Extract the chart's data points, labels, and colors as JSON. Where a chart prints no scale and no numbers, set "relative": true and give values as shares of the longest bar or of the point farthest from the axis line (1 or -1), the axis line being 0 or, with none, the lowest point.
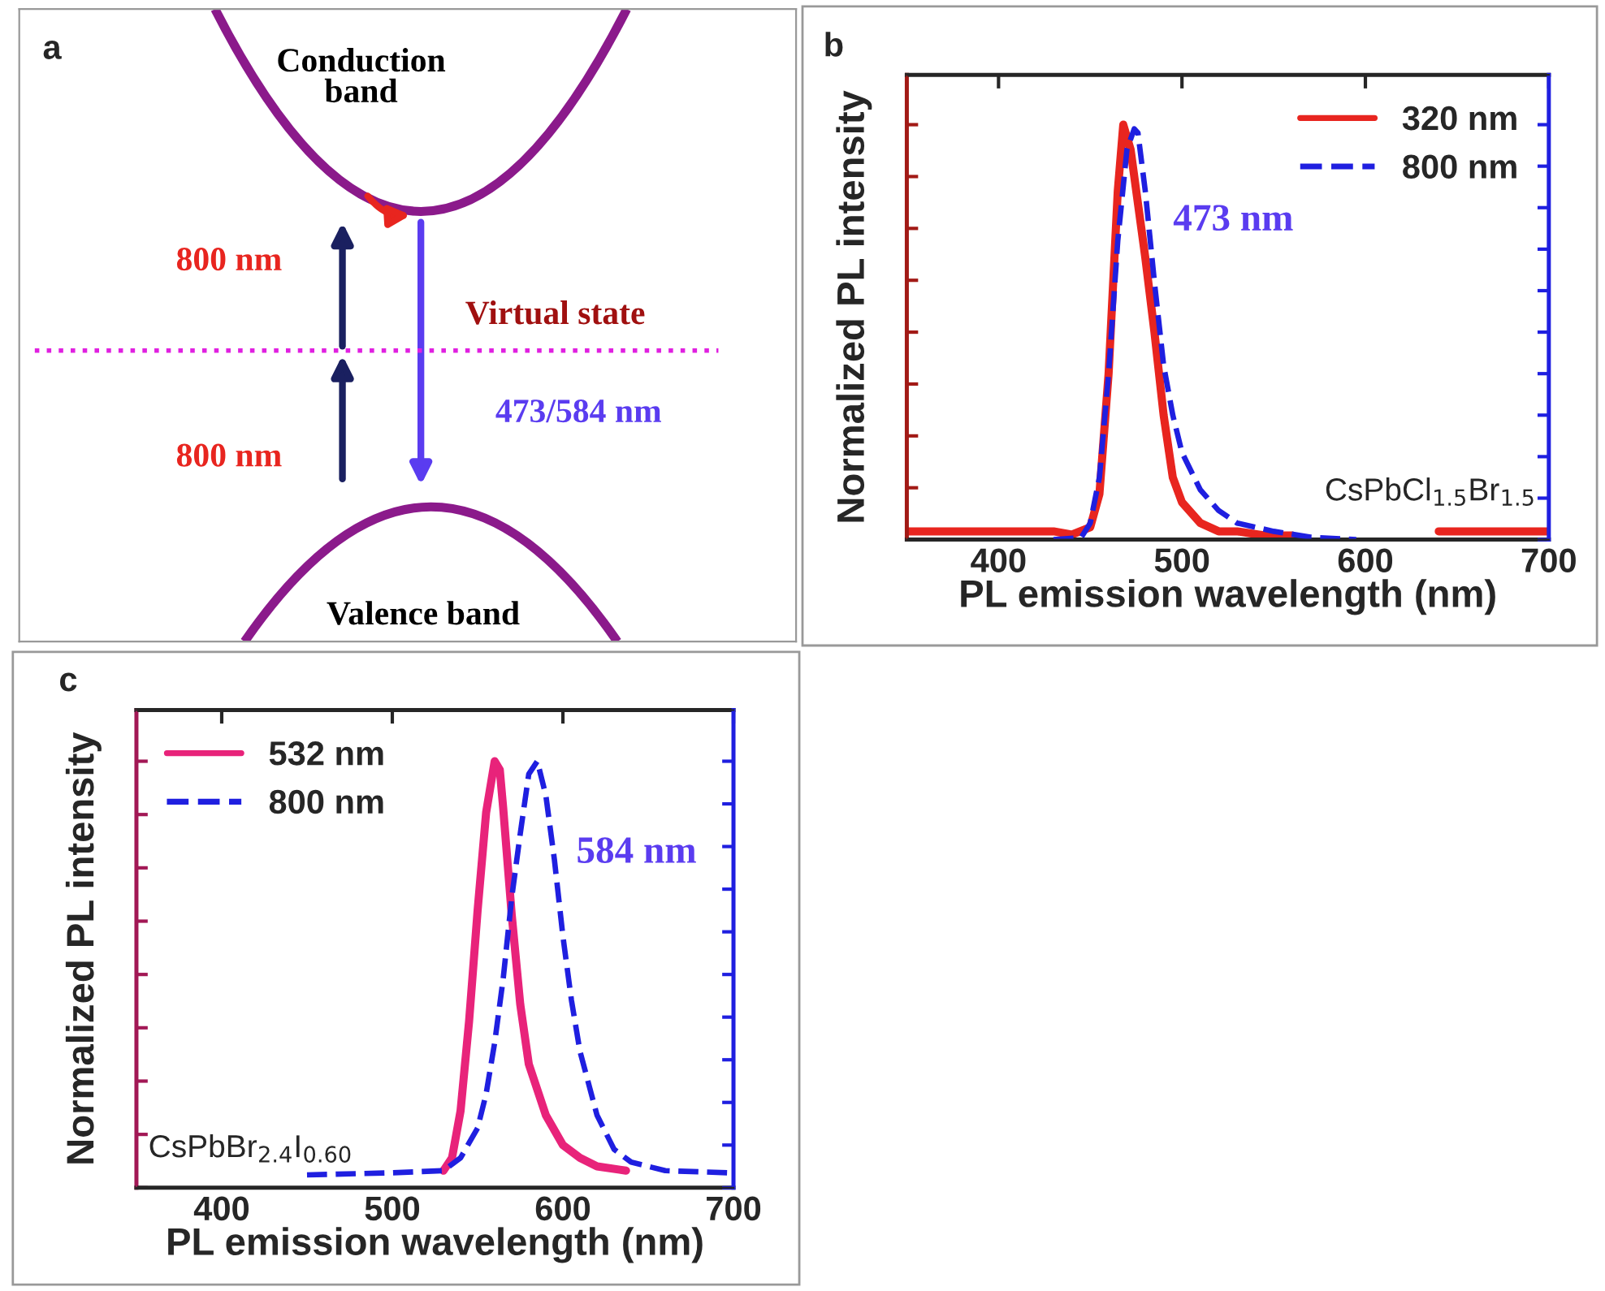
{
  "chart_data": [
    {
      "type": "other",
      "title": "a",
      "annotations": [
        "Conduction\nband",
        "Valence band",
        "800 nm",
        "800 nm",
        "Virtual state",
        "473/584 nm"
      ]
    },
    {
      "type": "line",
      "title": "b",
      "xlabel": "PL emission wavelength (nm)",
      "ylabel": "Normalized PL intensity",
      "relative": true,
      "xlim": [
        350,
        700
      ],
      "xticks": [
        400,
        500,
        600,
        700
      ],
      "tick_labels": "x",
      "legend": "top right",
      "grid": false,
      "series": [
        {
          "name": "320 nm",
          "color": "#e8251f",
          "line_style": "solid",
          "x": [
            350,
            380,
            410,
            430,
            440,
            450,
            455,
            460,
            465,
            468,
            472,
            480,
            485,
            490,
            495,
            500,
            510,
            520,
            530,
            545,
            560,
            575,
            640,
            660,
            680,
            700
          ],
          "values": [
            0.02,
            0.02,
            0.02,
            0.02,
            0.012,
            0.03,
            0.11,
            0.4,
            0.84,
            1.0,
            0.94,
            0.68,
            0.5,
            0.3,
            0.15,
            0.09,
            0.04,
            0.02,
            0.02,
            0.01,
            0.01,
            null,
            0.02,
            0.02,
            0.02,
            0.02
          ]
        },
        {
          "name": "800 nm",
          "color": "#1f1fe0",
          "line_style": "dashed",
          "axis": "y2",
          "x": [
            430,
            445,
            450,
            455,
            460,
            465,
            470,
            474,
            476,
            480,
            485,
            490,
            495,
            500,
            510,
            520,
            530,
            550,
            570,
            595
          ],
          "values": [
            0,
            0.005,
            0.04,
            0.15,
            0.4,
            0.72,
            0.94,
            0.99,
            0.98,
            0.84,
            0.62,
            0.42,
            0.3,
            0.21,
            0.12,
            0.07,
            0.04,
            0.02,
            0.006,
            0
          ]
        }
      ],
      "annotations": [
        {
          "text": "473 nm",
          "x": 473,
          "y": 0.99
        },
        "CsPbCl$_{1.5}$Br$_{1.5}$"
      ]
    },
    {
      "type": "line",
      "title": "c",
      "xlabel": "PL emission wavelength (nm)",
      "ylabel": "Normalized PL intensity",
      "relative": true,
      "xlim": [
        350,
        700
      ],
      "xticks": [
        400,
        500,
        600,
        700
      ],
      "tick_labels": "x",
      "legend": "top left",
      "grid": false,
      "series": [
        {
          "name": "532 nm",
          "color": "#e8237a",
          "line_style": "solid",
          "x": [
            530,
            535,
            540,
            545,
            550,
            555,
            560,
            563,
            565,
            570,
            575,
            580,
            590,
            600,
            610,
            620,
            637
          ],
          "values": [
            0.04,
            0.07,
            0.18,
            0.39,
            0.65,
            0.88,
            1.0,
            0.98,
            0.89,
            0.64,
            0.43,
            0.29,
            0.17,
            0.1,
            0.07,
            0.05,
            0.04
          ]
        },
        {
          "name": "800 nm",
          "color": "#1f1fe0",
          "line_style": "dashed",
          "axis": "y2",
          "x": [
            450,
            500,
            530,
            540,
            550,
            555,
            560,
            565,
            570,
            575,
            580,
            585,
            590,
            595,
            600,
            605,
            610,
            620,
            630,
            640,
            660,
            697
          ],
          "values": [
            0.03,
            0.035,
            0.04,
            0.07,
            0.14,
            0.22,
            0.34,
            0.49,
            0.68,
            0.83,
            0.97,
            1.0,
            0.92,
            0.77,
            0.59,
            0.44,
            0.32,
            0.17,
            0.09,
            0.06,
            0.04,
            0.035
          ]
        }
      ],
      "annotations": [
        {
          "text": "584 nm",
          "x": 584,
          "y": 1.0
        },
        "CsPbBr$_{2.4}$I$_{0.60}$"
      ]
    }
  ]
}
